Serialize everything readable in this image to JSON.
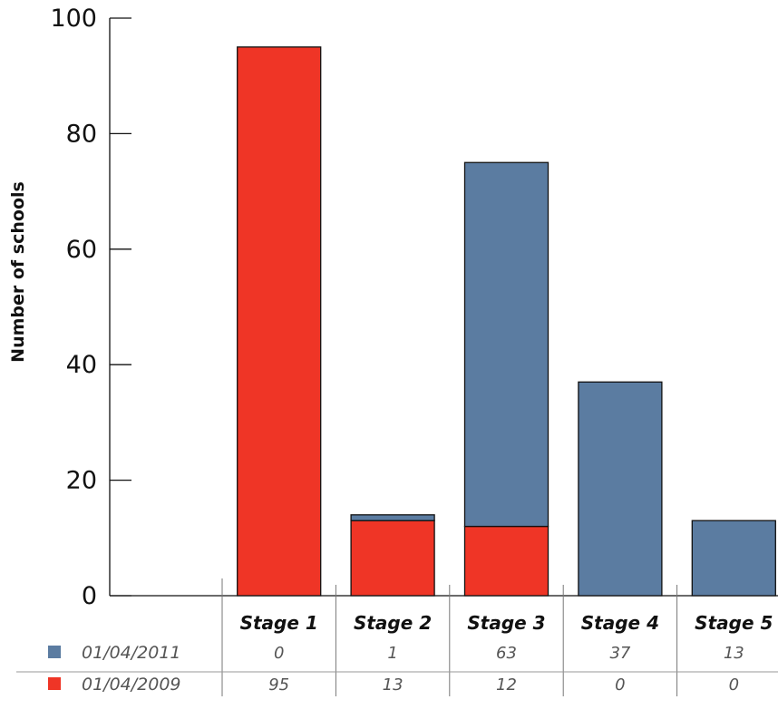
{
  "chart_data": {
    "type": "bar",
    "stacked": true,
    "categories": [
      "Stage 1",
      "Stage 2",
      "Stage 3",
      "Stage 4",
      "Stage 5"
    ],
    "series": [
      {
        "name": "01/04/2011",
        "color": "#5b7ca1",
        "values": [
          0,
          1,
          63,
          37,
          13
        ]
      },
      {
        "name": "01/04/2009",
        "color": "#ef3526",
        "values": [
          95,
          13,
          12,
          0,
          0
        ]
      }
    ],
    "ylabel": "Number of schools",
    "ylim": [
      0,
      100
    ],
    "yticks": [
      0,
      20,
      40,
      60,
      80,
      100
    ],
    "grid": false,
    "legend": "data-table-below"
  }
}
